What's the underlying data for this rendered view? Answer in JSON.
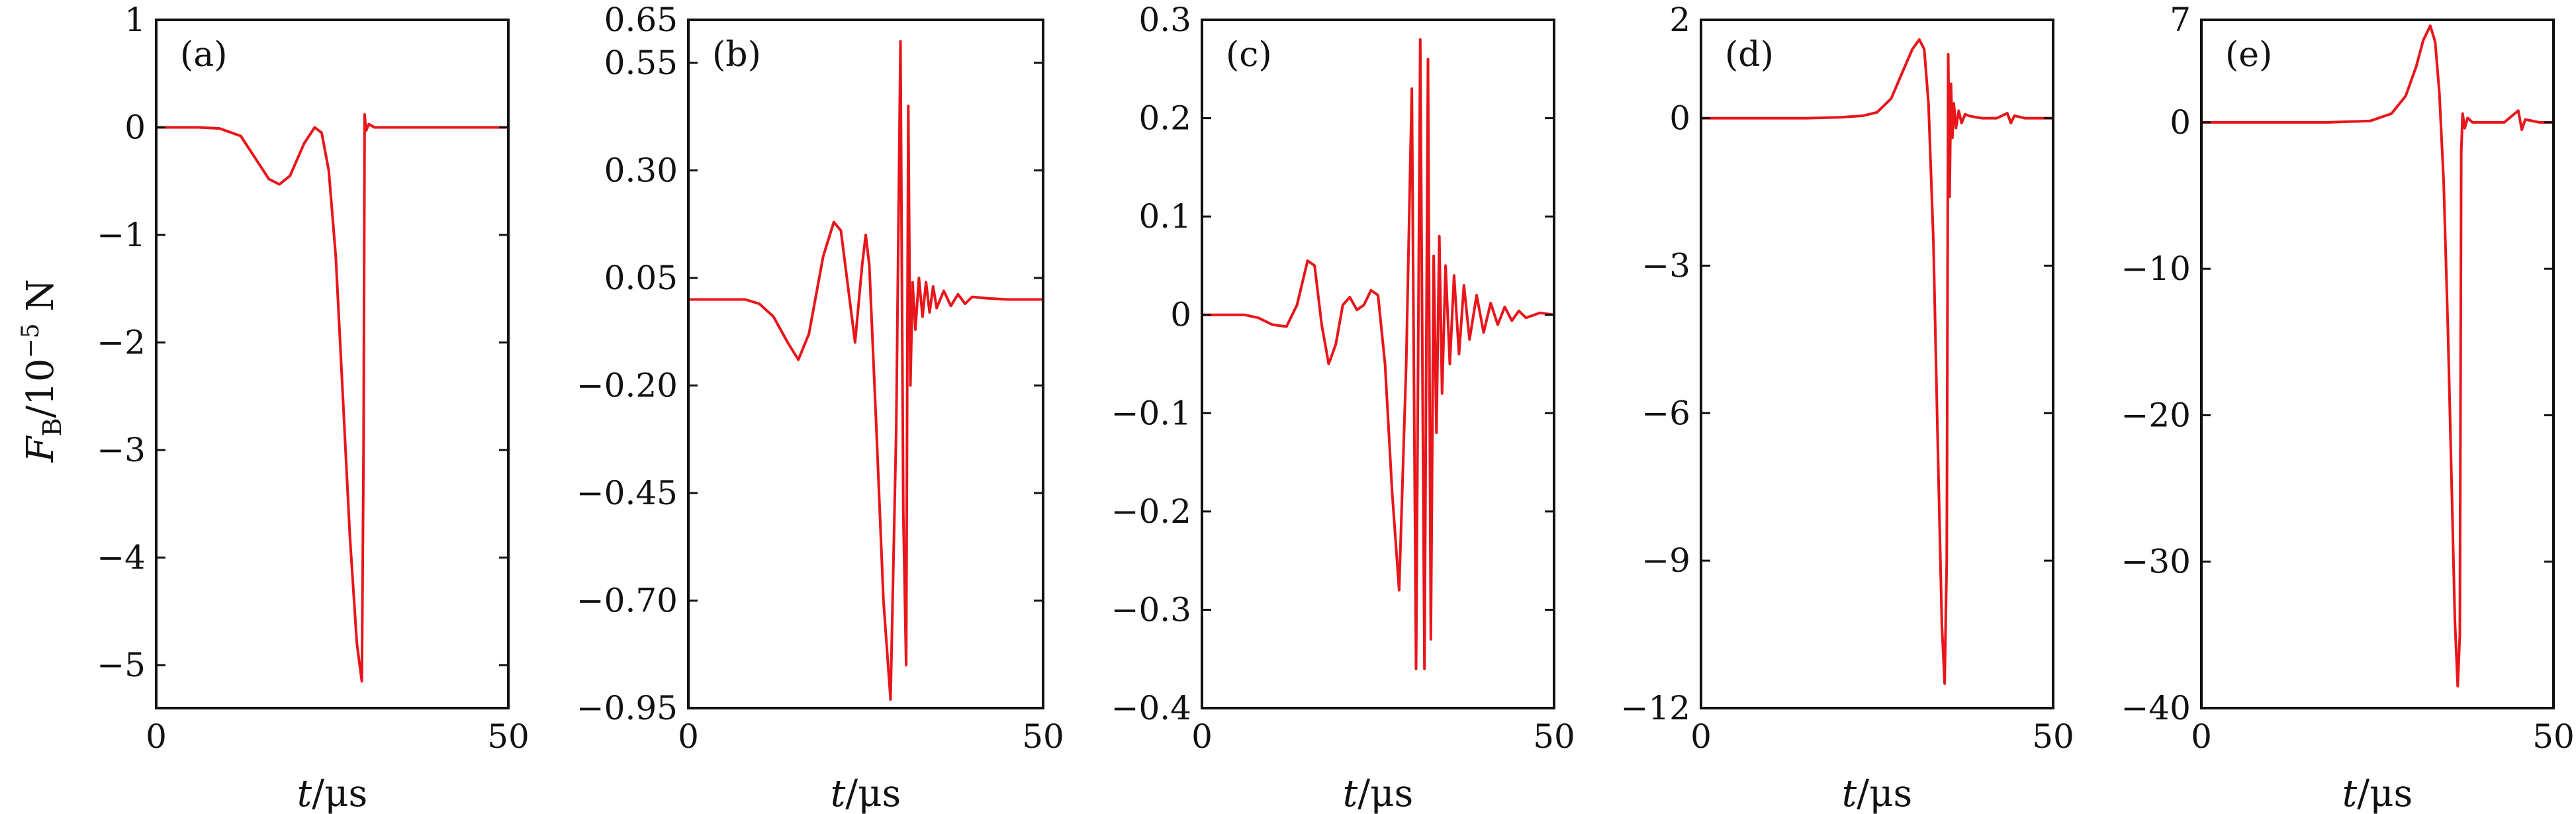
{
  "figure": {
    "ylabel_main": "F",
    "ylabel_sub": "B",
    "ylabel_rest": "/10",
    "ylabel_exp": "−5",
    "ylabel_unit": " N",
    "line_color": "#e8161b"
  },
  "chart_data": [
    {
      "type": "line",
      "label": "(a)",
      "xlabel_var": "t",
      "xlabel_unit": "/μs",
      "xlim": [
        0,
        50
      ],
      "ylim": [
        -5.4,
        1
      ],
      "xticks": [
        0,
        50
      ],
      "xtick_labels": [
        "0",
        "50"
      ],
      "yticks": [
        1,
        0,
        -1,
        -2,
        -3,
        -4,
        -5
      ],
      "ytick_labels": [
        "1",
        "0",
        "−1",
        "−2",
        "−3",
        "−4",
        "−5"
      ],
      "series": [
        {
          "name": "F_B",
          "x": [
            0,
            6,
            9,
            12,
            14,
            16,
            17.5,
            19,
            21,
            22.5,
            23.5,
            24.5,
            25.5,
            26.5,
            27.5,
            28.5,
            29.2,
            29.45,
            29.6,
            29.8,
            30.2,
            31,
            35,
            40,
            45,
            50
          ],
          "y": [
            0,
            0,
            -0.01,
            -0.08,
            -0.28,
            -0.48,
            -0.53,
            -0.45,
            -0.15,
            0,
            -0.05,
            -0.4,
            -1.2,
            -2.5,
            -3.8,
            -4.8,
            -5.15,
            -3,
            0.12,
            -0.03,
            0.03,
            0,
            0,
            0,
            0,
            0
          ]
        }
      ]
    },
    {
      "type": "line",
      "label": "(b)",
      "xlabel_var": "t",
      "xlabel_unit": "/μs",
      "xlim": [
        0,
        50
      ],
      "ylim": [
        -0.95,
        0.65
      ],
      "xticks": [
        0,
        50
      ],
      "xtick_labels": [
        "0",
        "50"
      ],
      "yticks": [
        0.65,
        0.55,
        0.3,
        0.05,
        -0.2,
        -0.45,
        -0.7,
        -0.95
      ],
      "ytick_labels": [
        "0.65",
        "0.55",
        "0.30",
        "0.05",
        "−0.20",
        "−0.45",
        "−0.70",
        "−0.95"
      ],
      "series": [
        {
          "name": "F_B",
          "x": [
            0,
            8,
            10,
            12,
            14,
            15.5,
            17,
            19,
            20.5,
            21.5,
            22.5,
            23.5,
            24.5,
            25,
            25.5,
            26.5,
            27.5,
            28.5,
            29.3,
            29.9,
            30.3,
            30.7,
            31,
            31.3,
            31.6,
            32,
            32.5,
            33,
            33.5,
            34,
            34.5,
            35,
            36,
            37,
            38,
            39,
            40,
            42,
            45,
            50
          ],
          "y": [
            0,
            0,
            -0.01,
            -0.04,
            -0.1,
            -0.14,
            -0.08,
            0.1,
            0.18,
            0.16,
            0.03,
            -0.1,
            0.08,
            0.15,
            0.08,
            -0.3,
            -0.7,
            -0.93,
            -0.3,
            0.6,
            -0.5,
            -0.85,
            0.45,
            -0.2,
            0.04,
            -0.07,
            0.05,
            -0.04,
            0.04,
            -0.03,
            0.03,
            -0.02,
            0.02,
            -0.015,
            0.012,
            -0.01,
            0.006,
            0.003,
            0,
            0
          ]
        }
      ]
    },
    {
      "type": "line",
      "label": "(c)",
      "xlabel_var": "t",
      "xlabel_unit": "/μs",
      "xlim": [
        0,
        50
      ],
      "ylim": [
        -0.4,
        0.3
      ],
      "xticks": [
        0,
        50
      ],
      "xtick_labels": [
        "0",
        "50"
      ],
      "yticks": [
        0.3,
        0.2,
        0.1,
        0,
        -0.1,
        -0.2,
        -0.3,
        -0.4
      ],
      "ytick_labels": [
        "0.3",
        "0.2",
        "0.1",
        "0",
        "−0.1",
        "−0.2",
        "−0.3",
        "−0.4"
      ],
      "series": [
        {
          "name": "F_B",
          "x": [
            0,
            6,
            8,
            10,
            12,
            13.5,
            15,
            16,
            17,
            18,
            19,
            20,
            21,
            22,
            23,
            24,
            25,
            26,
            27,
            28,
            29,
            29.8,
            30.4,
            31,
            31.6,
            32.1,
            32.5,
            32.9,
            33.3,
            33.7,
            34.1,
            34.6,
            35.2,
            35.8,
            36.5,
            37.2,
            38,
            39,
            40,
            41,
            42,
            43,
            44,
            45,
            46,
            48,
            50
          ],
          "y": [
            0,
            0,
            -0.003,
            -0.01,
            -0.012,
            0.01,
            0.055,
            0.05,
            -0.01,
            -0.05,
            -0.03,
            0.01,
            0.018,
            0.005,
            0.01,
            0.025,
            0.02,
            -0.05,
            -0.18,
            -0.28,
            -0.05,
            0.23,
            -0.36,
            0.28,
            -0.36,
            0.26,
            -0.33,
            0.06,
            -0.12,
            0.08,
            -0.08,
            0.05,
            -0.05,
            0.04,
            -0.04,
            0.03,
            -0.025,
            0.02,
            -0.018,
            0.012,
            -0.01,
            0.008,
            -0.006,
            0.004,
            -0.003,
            0.002,
            0
          ]
        }
      ]
    },
    {
      "type": "line",
      "label": "(d)",
      "xlabel_var": "t",
      "xlabel_unit": "/μs",
      "xlim": [
        0,
        50
      ],
      "ylim": [
        -12,
        2
      ],
      "xticks": [
        0,
        50
      ],
      "xtick_labels": [
        "0",
        "50"
      ],
      "yticks": [
        2,
        0,
        -3,
        -6,
        -9,
        -12
      ],
      "ytick_labels": [
        "2",
        "0",
        "−3",
        "−6",
        "−9",
        "−12"
      ],
      "series": [
        {
          "name": "F_B",
          "x": [
            0,
            15,
            20,
            23,
            25,
            27,
            28.5,
            30,
            31,
            31.7,
            32.3,
            33,
            33.6,
            34.2,
            34.6,
            34.9,
            35.1,
            35.3,
            35.5,
            35.7,
            35.9,
            36.2,
            36.6,
            37,
            37.5,
            38,
            39,
            40,
            42,
            43.5,
            44,
            44.5,
            46,
            50
          ],
          "y": [
            0,
            0,
            0.02,
            0.05,
            0.12,
            0.4,
            0.9,
            1.4,
            1.6,
            1.4,
            0.3,
            -2.5,
            -6.5,
            -10.3,
            -11.5,
            -9,
            1.3,
            -1.6,
            0.7,
            -0.4,
            0.3,
            -0.2,
            0.15,
            -0.1,
            0.08,
            0.05,
            0.02,
            0,
            0,
            0.1,
            -0.1,
            0.05,
            0,
            0
          ]
        }
      ]
    },
    {
      "type": "line",
      "label": "(e)",
      "xlabel_var": "t",
      "xlabel_unit": "/μs",
      "xlim": [
        0,
        50
      ],
      "ylim": [
        -40,
        7
      ],
      "xticks": [
        0,
        50
      ],
      "xtick_labels": [
        "0",
        "50"
      ],
      "yticks": [
        7,
        0,
        -10,
        -20,
        -30,
        -40
      ],
      "ytick_labels": [
        "7",
        "0",
        "−10",
        "−20",
        "−30",
        "−40"
      ],
      "series": [
        {
          "name": "F_B",
          "x": [
            0,
            18,
            24,
            27,
            29,
            30.5,
            31.5,
            32.5,
            33.2,
            33.8,
            34.4,
            35,
            35.6,
            36,
            36.4,
            36.7,
            36.9,
            37.1,
            37.4,
            37.8,
            38.5,
            40,
            43,
            45,
            45.5,
            46,
            48,
            50
          ],
          "y": [
            0,
            0,
            0.1,
            0.6,
            1.8,
            3.8,
            5.6,
            6.6,
            5.5,
            2,
            -4,
            -14,
            -26,
            -34,
            -38.5,
            -35,
            -2,
            0.6,
            -0.4,
            0.3,
            0,
            0,
            0,
            0.8,
            -0.5,
            0.2,
            0,
            0
          ]
        }
      ]
    }
  ]
}
